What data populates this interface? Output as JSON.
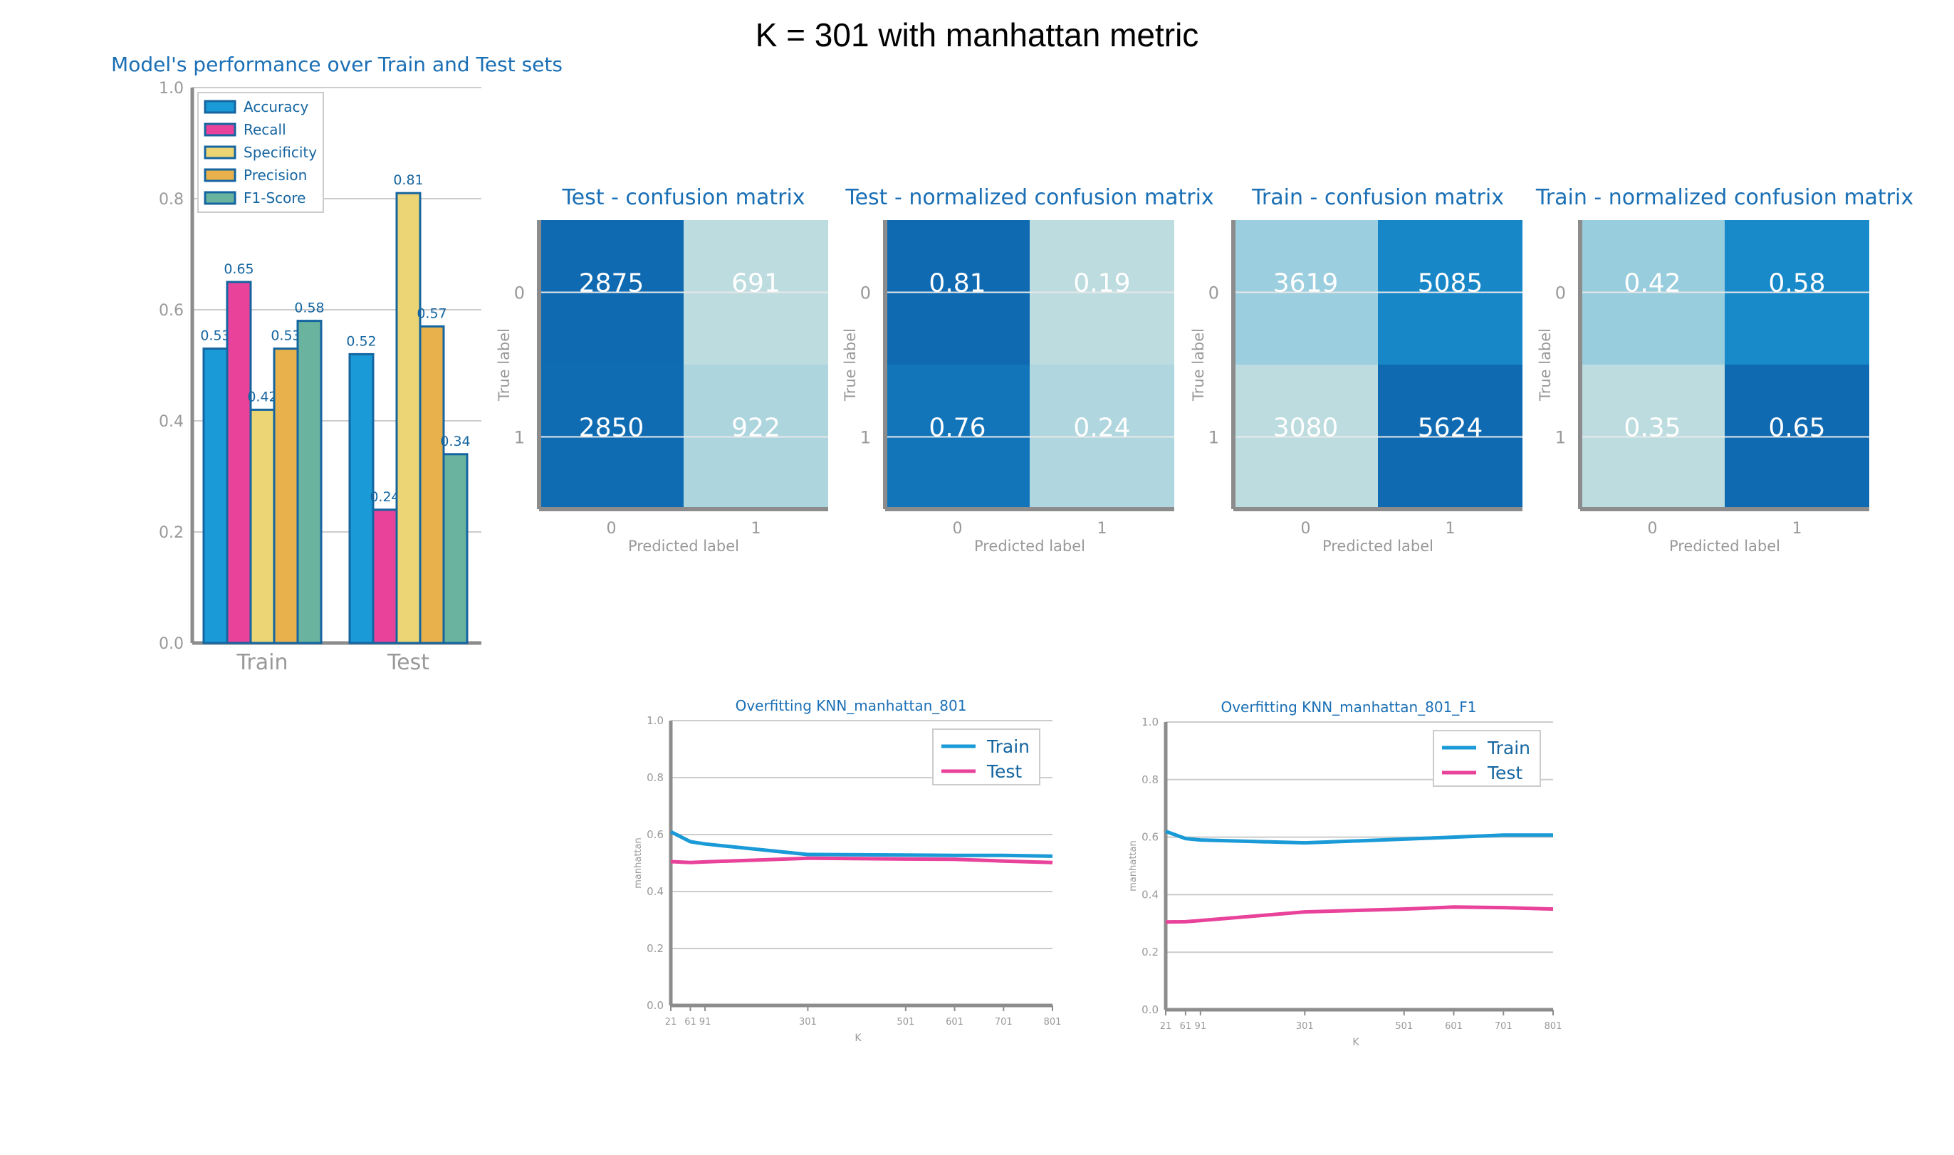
{
  "page": {
    "title": "K = 301 with manhattan metric"
  },
  "colors": {
    "accent": "#1f77b4",
    "title": "#1a6fb5",
    "axis": "#8c8c8c",
    "tick_text": "#999999",
    "grid": "#cccccc",
    "train_line": "#1a9ad6",
    "test_line": "#e8429a"
  },
  "chart_data": [
    {
      "type": "bar",
      "title": "Model's performance over Train and Test sets",
      "categories": [
        "Train",
        "Test"
      ],
      "series": [
        {
          "name": "Accuracy",
          "color": "#1a9ad6",
          "values": [
            0.53,
            0.52
          ]
        },
        {
          "name": "Recall",
          "color": "#e8429a",
          "values": [
            0.65,
            0.24
          ]
        },
        {
          "name": "Specificity",
          "color": "#ecd574",
          "values": [
            0.42,
            0.81
          ]
        },
        {
          "name": "Precision",
          "color": "#e9b14c",
          "values": [
            0.53,
            0.57
          ]
        },
        {
          "name": "F1-Score",
          "color": "#6ab39e",
          "values": [
            0.58,
            0.34
          ]
        }
      ],
      "ylim": [
        0,
        1
      ],
      "yticks": [
        "0.0",
        "0.2",
        "0.4",
        "0.6",
        "0.8",
        "1.0"
      ],
      "grid": true,
      "legend": "top-left"
    },
    {
      "type": "heatmap",
      "title": "Test - confusion matrix",
      "xlabel": "Predicted label",
      "ylabel": "True label",
      "row_labels": [
        "0",
        "1"
      ],
      "col_labels": [
        "0",
        "1"
      ],
      "labels": [
        [
          "2875",
          "691"
        ],
        [
          "2850",
          "922"
        ]
      ],
      "values": [
        [
          2875,
          691
        ],
        [
          2850,
          922
        ]
      ]
    },
    {
      "type": "heatmap",
      "title": "Test - normalized confusion matrix",
      "xlabel": "Predicted label",
      "ylabel": "True label",
      "row_labels": [
        "0",
        "1"
      ],
      "col_labels": [
        "0",
        "1"
      ],
      "labels": [
        [
          "0.81",
          "0.19"
        ],
        [
          "0.76",
          "0.24"
        ]
      ],
      "values": [
        [
          0.81,
          0.19
        ],
        [
          0.76,
          0.24
        ]
      ]
    },
    {
      "type": "heatmap",
      "title": "Train - confusion matrix",
      "xlabel": "Predicted label",
      "ylabel": "True label",
      "row_labels": [
        "0",
        "1"
      ],
      "col_labels": [
        "0",
        "1"
      ],
      "labels": [
        [
          "3619",
          "5085"
        ],
        [
          "3080",
          "5624"
        ]
      ],
      "values": [
        [
          3619,
          5085
        ],
        [
          3080,
          5624
        ]
      ]
    },
    {
      "type": "heatmap",
      "title": "Train - normalized confusion matrix",
      "xlabel": "Predicted label",
      "ylabel": "True label",
      "row_labels": [
        "0",
        "1"
      ],
      "col_labels": [
        "0",
        "1"
      ],
      "labels": [
        [
          "0.42",
          "0.58"
        ],
        [
          "0.35",
          "0.65"
        ]
      ],
      "values": [
        [
          0.42,
          0.58
        ],
        [
          0.35,
          0.65
        ]
      ]
    },
    {
      "type": "line",
      "title": "Overfitting KNN_manhattan_801",
      "xlabel": "K",
      "ylabel": "manhattan",
      "x": [
        21,
        61,
        91,
        301,
        501,
        601,
        701,
        801
      ],
      "xticks": [
        "21",
        "61",
        "91",
        "301",
        "501",
        "601",
        "701",
        "801"
      ],
      "series": [
        {
          "name": "Train",
          "values": [
            0.61,
            0.575,
            0.567,
            0.53,
            0.528,
            0.527,
            0.527,
            0.524
          ]
        },
        {
          "name": "Test",
          "values": [
            0.505,
            0.502,
            0.504,
            0.517,
            0.514,
            0.513,
            0.507,
            0.502
          ]
        }
      ],
      "ylim": [
        0,
        1
      ],
      "yticks": [
        "0.0",
        "0.2",
        "0.4",
        "0.6",
        "0.8",
        "1.0"
      ],
      "grid": true,
      "legend": "top-right"
    },
    {
      "type": "line",
      "title": "Overfitting KNN_manhattan_801_F1",
      "xlabel": "K",
      "ylabel": "manhattan",
      "x": [
        21,
        61,
        91,
        301,
        501,
        601,
        701,
        801
      ],
      "xticks": [
        "21",
        "61",
        "91",
        "301",
        "501",
        "601",
        "701",
        "801"
      ],
      "series": [
        {
          "name": "Train",
          "values": [
            0.62,
            0.595,
            0.59,
            0.58,
            0.593,
            0.6,
            0.607,
            0.607
          ]
        },
        {
          "name": "Test",
          "values": [
            0.305,
            0.306,
            0.31,
            0.34,
            0.35,
            0.357,
            0.355,
            0.35
          ]
        }
      ],
      "ylim": [
        0,
        1
      ],
      "yticks": [
        "0.0",
        "0.2",
        "0.4",
        "0.6",
        "0.8",
        "1.0"
      ],
      "grid": true,
      "legend": "top-right"
    }
  ]
}
